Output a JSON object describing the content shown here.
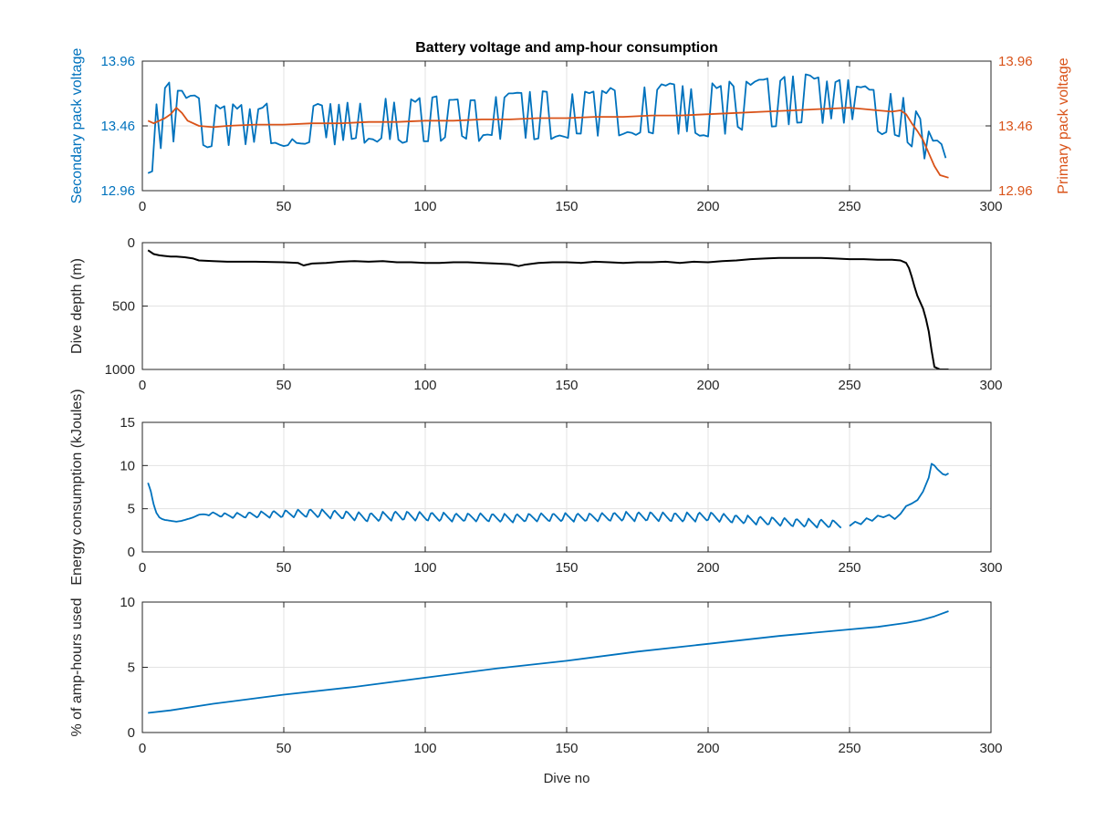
{
  "figure": {
    "title": "Battery voltage and amp-hour consumption",
    "xlabel": "Dive no"
  },
  "colors": {
    "blue": "#0072bd",
    "orange": "#d95319",
    "black": "#000000",
    "axis": "#262626",
    "grid": "#e3e3e3"
  },
  "chart_data": [
    {
      "type": "line",
      "title": "Battery voltage and amp-hour consumption",
      "xlim": [
        0,
        300
      ],
      "xticks": [
        0,
        50,
        100,
        150,
        200,
        250,
        300
      ],
      "ylabel": "Secondary pack voltage",
      "ylim": [
        12.96,
        13.96
      ],
      "yticks": [
        12.96,
        13.46,
        13.96
      ],
      "ytick_labels": [
        "12.96",
        "13.46",
        "13.96"
      ],
      "ylabel_right": "Primary pack voltage",
      "ylim_right": [
        12.96,
        13.96
      ],
      "yticks_right": [
        12.96,
        13.46,
        13.96
      ],
      "ytick_labels_right": [
        "12.96",
        "13.46",
        "13.96"
      ],
      "grid": true,
      "series": [
        {
          "axis": "left",
          "color": "#0072bd",
          "style": "square-toggle",
          "x": [
            2,
            3,
            4,
            5,
            6,
            8,
            10,
            12,
            15,
            18,
            20,
            25,
            30,
            35,
            40,
            45,
            50,
            55,
            60,
            65,
            70,
            75,
            80,
            85,
            90,
            95,
            100,
            105,
            110,
            115,
            120,
            125,
            130,
            135,
            140,
            145,
            150,
            155,
            160,
            165,
            170,
            175,
            180,
            185,
            190,
            195,
            200,
            205,
            210,
            215,
            220,
            225,
            230,
            235,
            240,
            245,
            250,
            255,
            260,
            265,
            268,
            270,
            272,
            275,
            278,
            280,
            283,
            285
          ],
          "low": [
            13.1,
            13.05,
            13.12,
            13.2,
            13.3,
            13.32,
            13.35,
            13.3,
            13.35,
            13.3,
            13.32,
            13.3,
            13.32,
            13.35,
            13.32,
            13.35,
            13.32,
            13.35,
            13.32,
            13.35,
            13.33,
            13.35,
            13.35,
            13.37,
            13.35,
            13.35,
            13.33,
            13.35,
            13.37,
            13.35,
            13.37,
            13.38,
            13.37,
            13.38,
            13.37,
            13.38,
            13.38,
            13.38,
            13.4,
            13.38,
            13.4,
            13.38,
            13.4,
            13.4,
            13.42,
            13.4,
            13.4,
            13.42,
            13.43,
            13.43,
            13.45,
            13.45,
            13.48,
            13.5,
            13.48,
            13.5,
            13.5,
            13.45,
            13.42,
            13.4,
            13.38,
            13.35,
            13.3,
            13.25,
            13.2,
            13.22,
            13.25,
            13.2
          ],
          "high": [
            13.62,
            13.58,
            13.6,
            13.65,
            13.7,
            13.75,
            13.8,
            13.72,
            13.7,
            13.68,
            13.65,
            13.62,
            13.6,
            13.62,
            13.6,
            13.65,
            13.63,
            13.62,
            13.6,
            13.62,
            13.63,
            13.64,
            13.65,
            13.66,
            13.65,
            13.66,
            13.65,
            13.67,
            13.68,
            13.66,
            13.68,
            13.69,
            13.7,
            13.7,
            13.71,
            13.72,
            13.72,
            13.73,
            13.74,
            13.73,
            13.74,
            13.75,
            13.75,
            13.76,
            13.77,
            13.76,
            13.77,
            13.78,
            13.79,
            13.8,
            13.8,
            13.82,
            13.83,
            13.84,
            13.83,
            13.82,
            13.8,
            13.76,
            13.73,
            13.7,
            13.68,
            13.65,
            13.6,
            13.5,
            13.4,
            13.35,
            13.3,
            13.2
          ]
        },
        {
          "axis": "right",
          "color": "#d95319",
          "style": "line",
          "x": [
            2,
            4,
            6,
            8,
            10,
            12,
            14,
            16,
            20,
            25,
            30,
            40,
            50,
            60,
            70,
            80,
            90,
            100,
            110,
            120,
            130,
            140,
            150,
            160,
            170,
            180,
            190,
            200,
            210,
            220,
            230,
            240,
            250,
            255,
            260,
            265,
            268,
            270,
            272,
            274,
            276,
            278,
            280,
            282,
            285
          ],
          "y": [
            13.5,
            13.48,
            13.5,
            13.52,
            13.55,
            13.6,
            13.56,
            13.5,
            13.46,
            13.45,
            13.46,
            13.47,
            13.47,
            13.48,
            13.48,
            13.49,
            13.49,
            13.5,
            13.5,
            13.51,
            13.51,
            13.52,
            13.52,
            13.53,
            13.53,
            13.54,
            13.54,
            13.55,
            13.56,
            13.57,
            13.58,
            13.59,
            13.6,
            13.59,
            13.58,
            13.57,
            13.58,
            13.55,
            13.48,
            13.42,
            13.35,
            13.25,
            13.15,
            13.08,
            13.06
          ]
        }
      ]
    },
    {
      "type": "line",
      "xlim": [
        0,
        300
      ],
      "xticks": [
        0,
        50,
        100,
        150,
        200,
        250,
        300
      ],
      "ylabel": "Dive depth (m)",
      "ylim": [
        0,
        1000
      ],
      "y_reversed": true,
      "yticks": [
        0,
        500,
        1000
      ],
      "ytick_labels": [
        "0",
        "500",
        "1000"
      ],
      "grid": true,
      "series": [
        {
          "color": "#000000",
          "x": [
            2,
            4,
            6,
            8,
            10,
            12,
            15,
            18,
            20,
            25,
            30,
            40,
            50,
            55,
            57,
            60,
            65,
            70,
            75,
            80,
            85,
            90,
            95,
            100,
            105,
            110,
            115,
            120,
            125,
            130,
            133,
            135,
            140,
            145,
            150,
            155,
            160,
            165,
            170,
            175,
            180,
            185,
            190,
            195,
            200,
            205,
            210,
            215,
            220,
            225,
            230,
            235,
            240,
            245,
            250,
            255,
            260,
            265,
            268,
            270,
            271,
            272,
            273,
            274,
            275,
            276,
            277,
            278,
            279,
            280,
            282,
            285
          ],
          "y": [
            60,
            90,
            100,
            105,
            110,
            110,
            115,
            125,
            140,
            145,
            150,
            150,
            155,
            160,
            180,
            165,
            160,
            150,
            145,
            150,
            145,
            155,
            155,
            160,
            160,
            155,
            155,
            160,
            165,
            170,
            185,
            175,
            160,
            155,
            155,
            160,
            150,
            155,
            160,
            155,
            155,
            150,
            160,
            150,
            155,
            145,
            140,
            130,
            125,
            120,
            120,
            120,
            120,
            125,
            130,
            130,
            135,
            135,
            140,
            160,
            200,
            270,
            350,
            420,
            470,
            520,
            600,
            700,
            850,
            980,
            1000,
            1000
          ]
        }
      ]
    },
    {
      "type": "line",
      "xlim": [
        0,
        300
      ],
      "xticks": [
        0,
        50,
        100,
        150,
        200,
        250,
        300
      ],
      "ylabel": "Energy consumption (kJoules)",
      "ylim": [
        0,
        15
      ],
      "yticks": [
        0,
        5,
        10,
        15
      ],
      "ytick_labels": [
        "0",
        "5",
        "10",
        "15"
      ],
      "grid": true,
      "series": [
        {
          "color": "#0072bd",
          "style": "oscillating",
          "x": [
            2,
            3,
            4,
            5,
            6,
            7,
            8,
            10,
            12,
            14,
            16,
            18,
            20,
            25,
            30,
            40,
            50,
            60,
            70,
            80,
            90,
            100,
            110,
            120,
            130,
            140,
            150,
            160,
            170,
            180,
            190,
            200,
            210,
            220,
            230,
            240,
            247
          ],
          "y": [
            8.0,
            7.0,
            5.5,
            4.5,
            4.0,
            3.8,
            3.7,
            3.6,
            3.5,
            3.6,
            3.8,
            4.0,
            4.3,
            4.4,
            4.2,
            4.3,
            4.4,
            4.5,
            4.3,
            4.0,
            4.2,
            4.1,
            4.0,
            4.0,
            3.9,
            4.0,
            4.0,
            4.0,
            4.1,
            4.1,
            4.0,
            4.1,
            3.8,
            3.6,
            3.4,
            3.3,
            3.2
          ],
          "amplitude": [
            0,
            0,
            0,
            0,
            0,
            0,
            0,
            0,
            0,
            0,
            0,
            0,
            0,
            0.2,
            0.3,
            0.35,
            0.45,
            0.5,
            0.5,
            0.55,
            0.55,
            0.55,
            0.5,
            0.5,
            0.5,
            0.5,
            0.5,
            0.5,
            0.55,
            0.55,
            0.55,
            0.55,
            0.5,
            0.5,
            0.5,
            0.5,
            0.45
          ]
        },
        {
          "color": "#0072bd",
          "style": "line",
          "x": [
            250,
            252,
            254,
            256,
            258,
            260,
            262,
            264,
            266,
            268,
            270,
            272,
            274,
            276,
            278,
            279,
            280,
            281,
            282,
            283,
            284,
            285
          ],
          "y": [
            3.0,
            3.5,
            3.2,
            3.9,
            3.6,
            4.2,
            4.0,
            4.3,
            3.8,
            4.4,
            5.3,
            5.6,
            6.0,
            7.0,
            8.6,
            10.2,
            10.0,
            9.6,
            9.3,
            9.0,
            8.9,
            9.1
          ]
        }
      ]
    },
    {
      "type": "line",
      "xlim": [
        0,
        300
      ],
      "xticks": [
        0,
        50,
        100,
        150,
        200,
        250,
        300
      ],
      "xlabel": "Dive no",
      "ylabel": "% of amp-hours used",
      "ylim": [
        0,
        10
      ],
      "yticks": [
        0,
        5,
        10
      ],
      "ytick_labels": [
        "0",
        "5",
        "10"
      ],
      "grid": true,
      "series": [
        {
          "color": "#0072bd",
          "x": [
            2,
            10,
            25,
            50,
            75,
            100,
            125,
            150,
            175,
            200,
            225,
            250,
            260,
            265,
            270,
            275,
            280,
            285
          ],
          "y": [
            1.5,
            1.7,
            2.2,
            2.9,
            3.5,
            4.2,
            4.9,
            5.5,
            6.2,
            6.8,
            7.4,
            7.9,
            8.1,
            8.25,
            8.4,
            8.6,
            8.9,
            9.3
          ]
        }
      ]
    }
  ]
}
